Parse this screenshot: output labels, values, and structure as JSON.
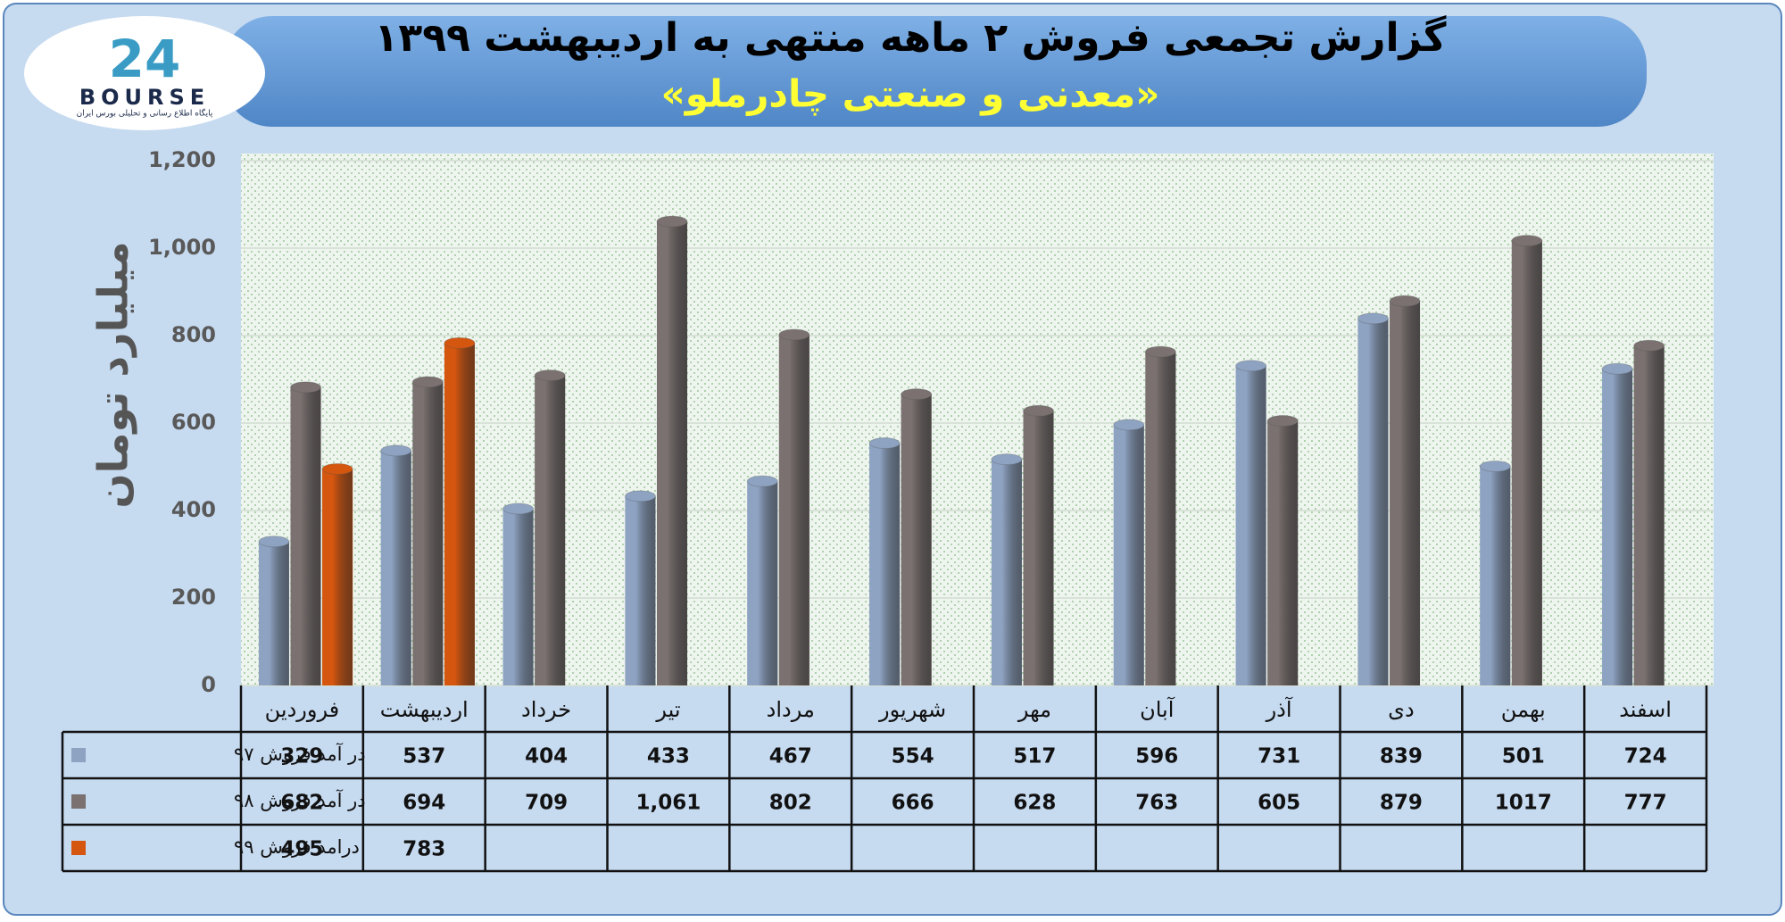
{
  "logo": {
    "mark": "24",
    "name": "BOURSE",
    "tagline": "پایگاه اطلاع رسانی و تحلیلی بورس ایران"
  },
  "chart_data": {
    "type": "bar",
    "title": "گزارش تجمعی فروش ۲ ماهه منتهی به اردیبهشت ۱۳۹۹",
    "subtitle": "«معدنی و صنعتی چادرملو»",
    "y_label": "میلیارد تومان",
    "categories": [
      "فروردین",
      "اردیبهشت",
      "خرداد",
      "تیر",
      "مرداد",
      "شهریور",
      "مهر",
      "آبان",
      "آذر",
      "دی",
      "بهمن",
      "اسفند"
    ],
    "series": [
      {
        "name": "در آمد فروش ۹۷",
        "color": "#8ea3c2",
        "values": [
          329,
          537,
          404,
          433,
          467,
          554,
          517,
          596,
          731,
          839,
          501,
          724
        ]
      },
      {
        "name": "در آمد فروش ۹۸",
        "color": "#7a7170",
        "values": [
          682,
          694,
          709,
          1061,
          802,
          666,
          628,
          763,
          605,
          879,
          1017,
          777
        ],
        "value_labels": [
          "682",
          "694",
          "709",
          "1,061",
          "802",
          "666",
          "628",
          "763",
          "605",
          "879",
          "1017",
          "777"
        ]
      },
      {
        "name": "درامد فروش ۹۹",
        "color": "#d4560f",
        "values": [
          495,
          783,
          null,
          null,
          null,
          null,
          null,
          null,
          null,
          null,
          null,
          null
        ]
      }
    ],
    "ylim": [
      0,
      1200
    ],
    "yticks": [
      0,
      200,
      400,
      600,
      800,
      {
        "value": 1000,
        "label": "1,000"
      },
      {
        "value": 1200,
        "label": "1,200"
      }
    ],
    "grid": true
  }
}
